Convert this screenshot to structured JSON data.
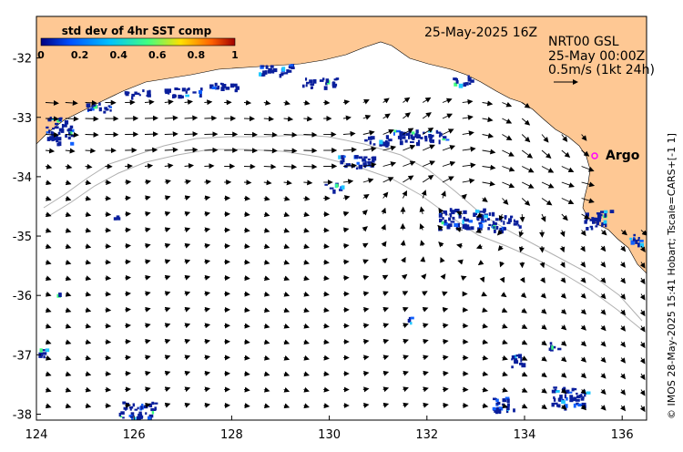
{
  "map": {
    "date_label": "25-May-2025 16Z",
    "current_source": "NRT00 GSL",
    "current_time": "25-May 00:00Z",
    "vector_scale": "0.5m/s (1kt 24h)",
    "argo_label": "Argo",
    "credit": "© IMOS 28-May-2025 15:41 Hobart; Tscale=CARS+[-1 1]",
    "colorbar": {
      "title": "std dev of 4hr SST comp",
      "ticks": [
        "0",
        "0.2",
        "0.4",
        "0.6",
        "0.8",
        "1"
      ],
      "colors": [
        "#000080",
        "#0050ff",
        "#00c0ff",
        "#40ff80",
        "#ffe000",
        "#ff6000",
        "#a00000"
      ]
    },
    "x_ticks": [
      "124",
      "126",
      "128",
      "130",
      "132",
      "134",
      "136"
    ],
    "y_ticks": [
      "-32",
      "-33",
      "-34",
      "-35",
      "-36",
      "-37",
      "-38"
    ],
    "x_range": [
      124,
      136.5
    ],
    "y_range": [
      -38.1,
      -31.3
    ],
    "colors": {
      "land": "#fec894",
      "ocean": "#ffffff",
      "argo": "#ff00ff",
      "sst_patch": "#0a1f9c",
      "bathy": "#b0b0b0"
    }
  }
}
